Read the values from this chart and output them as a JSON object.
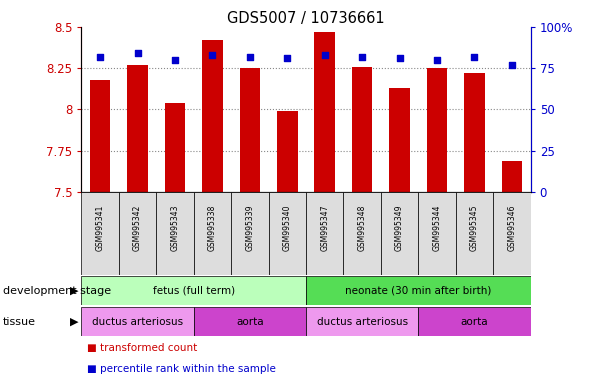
{
  "title": "GDS5007 / 10736661",
  "samples": [
    "GSM995341",
    "GSM995342",
    "GSM995343",
    "GSM995338",
    "GSM995339",
    "GSM995340",
    "GSM995347",
    "GSM995348",
    "GSM995349",
    "GSM995344",
    "GSM995345",
    "GSM995346"
  ],
  "bar_values": [
    8.18,
    8.27,
    8.04,
    8.42,
    8.25,
    7.99,
    8.47,
    8.26,
    8.13,
    8.25,
    8.22,
    7.69
  ],
  "percentile_values": [
    82,
    84,
    80,
    83,
    82,
    81,
    83,
    82,
    81,
    80,
    82,
    77
  ],
  "ylim_left": [
    7.5,
    8.5
  ],
  "ylim_right": [
    0,
    100
  ],
  "yticks_left": [
    7.5,
    7.75,
    8.0,
    8.25,
    8.5
  ],
  "yticks_right": [
    0,
    25,
    50,
    75,
    100
  ],
  "ytick_labels_left": [
    "7.5",
    "7.75",
    "8",
    "8.25",
    "8.5"
  ],
  "ytick_labels_right": [
    "0",
    "25",
    "50",
    "75",
    "100%"
  ],
  "bar_color": "#cc0000",
  "dot_color": "#0000cc",
  "bar_width": 0.55,
  "development_stages": [
    {
      "label": "fetus (full term)",
      "start": 0,
      "end": 6,
      "color": "#bbffbb"
    },
    {
      "label": "neonate (30 min after birth)",
      "start": 6,
      "end": 12,
      "color": "#55dd55"
    }
  ],
  "tissues": [
    {
      "label": "ductus arteriosus",
      "start": 0,
      "end": 3,
      "color": "#ee99ee"
    },
    {
      "label": "aorta",
      "start": 3,
      "end": 6,
      "color": "#cc44cc"
    },
    {
      "label": "ductus arteriosus",
      "start": 6,
      "end": 9,
      "color": "#ee99ee"
    },
    {
      "label": "aorta",
      "start": 9,
      "end": 12,
      "color": "#cc44cc"
    }
  ],
  "legend_items": [
    {
      "label": "transformed count",
      "color": "#cc0000"
    },
    {
      "label": "percentile rank within the sample",
      "color": "#0000cc"
    }
  ],
  "grid_color": "#888888",
  "tick_color_left": "#cc0000",
  "tick_color_right": "#0000cc",
  "background_color": "#ffffff",
  "label_row1": "development stage",
  "label_row2": "tissue",
  "sample_box_color": "#dddddd"
}
